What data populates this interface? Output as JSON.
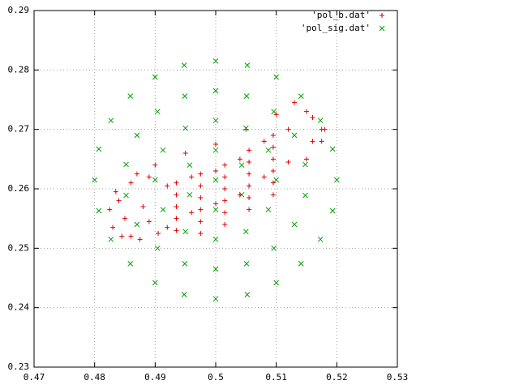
{
  "chart_data": {
    "type": "scatter",
    "xlim": [
      0.47,
      0.53
    ],
    "ylim": [
      0.23,
      0.29
    ],
    "xticks": [
      0.47,
      0.48,
      0.49,
      0.5,
      0.51,
      0.52,
      0.53
    ],
    "yticks": [
      0.23,
      0.24,
      0.25,
      0.26,
      0.27,
      0.28,
      0.29
    ],
    "grid": true,
    "legend": "top-right",
    "series": [
      {
        "name": "'pol_b.dat'",
        "color": "#e00000",
        "marker": "+",
        "x": [
          0.484,
          0.487,
          0.49,
          0.495,
          0.5,
          0.505,
          0.51,
          0.515,
          0.5175,
          0.485,
          0.488,
          0.492,
          0.496,
          0.5,
          0.504,
          0.508,
          0.512,
          0.516,
          0.483,
          0.486,
          0.489,
          0.492,
          0.496,
          0.5,
          0.504,
          0.508,
          0.512,
          0.515,
          0.4975,
          0.4975,
          0.4975,
          0.4975,
          0.4975,
          0.4975,
          0.5015,
          0.5015,
          0.5015,
          0.5015,
          0.5015,
          0.5015,
          0.5055,
          0.5055,
          0.5055,
          0.5055,
          0.5055,
          0.5055,
          0.5095,
          0.5095,
          0.5095,
          0.5095,
          0.5095,
          0.5095,
          0.4935,
          0.4935,
          0.4935,
          0.4935,
          0.4935,
          0.4825,
          0.4835,
          0.486,
          0.489,
          0.4845,
          0.4875,
          0.4905,
          0.513,
          0.516,
          0.5175,
          0.518
        ],
        "values": [
          0.258,
          0.2625,
          0.264,
          0.266,
          0.2675,
          0.27,
          0.2725,
          0.273,
          0.27,
          0.255,
          0.257,
          0.2605,
          0.262,
          0.263,
          0.265,
          0.268,
          0.27,
          0.268,
          0.2535,
          0.252,
          0.2545,
          0.2535,
          0.256,
          0.2575,
          0.259,
          0.262,
          0.2645,
          0.265,
          0.2525,
          0.2545,
          0.2565,
          0.2585,
          0.2605,
          0.2625,
          0.254,
          0.256,
          0.258,
          0.26,
          0.262,
          0.264,
          0.2565,
          0.2585,
          0.2605,
          0.2625,
          0.2645,
          0.2665,
          0.259,
          0.261,
          0.263,
          0.265,
          0.267,
          0.269,
          0.253,
          0.255,
          0.257,
          0.259,
          0.261,
          0.2565,
          0.2595,
          0.261,
          0.262,
          0.252,
          0.2515,
          0.2525,
          0.2745,
          0.272,
          0.268,
          0.27
        ]
      },
      {
        "name": "'pol_sig.dat'",
        "color": "#00a000",
        "marker": "x",
        "x": [
          0.52,
          0.5193,
          0.5173,
          0.5141,
          0.51,
          0.5052,
          0.5,
          0.4948,
          0.49,
          0.4859,
          0.4827,
          0.4807,
          0.48,
          0.4807,
          0.4827,
          0.4859,
          0.49,
          0.4948,
          0.5,
          0.5052,
          0.51,
          0.5141,
          0.5173,
          0.5193,
          0.5148,
          0.513,
          0.5096,
          0.5051,
          0.5,
          0.4949,
          0.4904,
          0.487,
          0.4852,
          0.4852,
          0.487,
          0.4904,
          0.4949,
          0.5,
          0.5051,
          0.5096,
          0.513,
          0.5148,
          0.51,
          0.5087,
          0.505,
          0.5,
          0.495,
          0.4913,
          0.49,
          0.4913,
          0.495,
          0.5,
          0.505,
          0.5087,
          0.5043,
          0.5,
          0.4957,
          0.4957,
          0.5,
          0.5043,
          0.5
        ],
        "values": [
          0.2615,
          0.2667,
          0.2715,
          0.2756,
          0.2788,
          0.2808,
          0.2815,
          0.2808,
          0.2788,
          0.2756,
          0.2715,
          0.2667,
          0.2615,
          0.2563,
          0.2515,
          0.2474,
          0.2442,
          0.2422,
          0.2415,
          0.2422,
          0.2442,
          0.2474,
          0.2515,
          0.2563,
          0.2641,
          0.269,
          0.273,
          0.2756,
          0.2765,
          0.2756,
          0.273,
          0.269,
          0.2641,
          0.2589,
          0.254,
          0.25,
          0.2474,
          0.2465,
          0.2474,
          0.25,
          0.254,
          0.2589,
          0.2615,
          0.2665,
          0.2702,
          0.2715,
          0.2702,
          0.2665,
          0.2615,
          0.2565,
          0.2528,
          0.2515,
          0.2528,
          0.2565,
          0.264,
          0.2665,
          0.264,
          0.259,
          0.2565,
          0.259,
          0.2615
        ]
      }
    ]
  }
}
